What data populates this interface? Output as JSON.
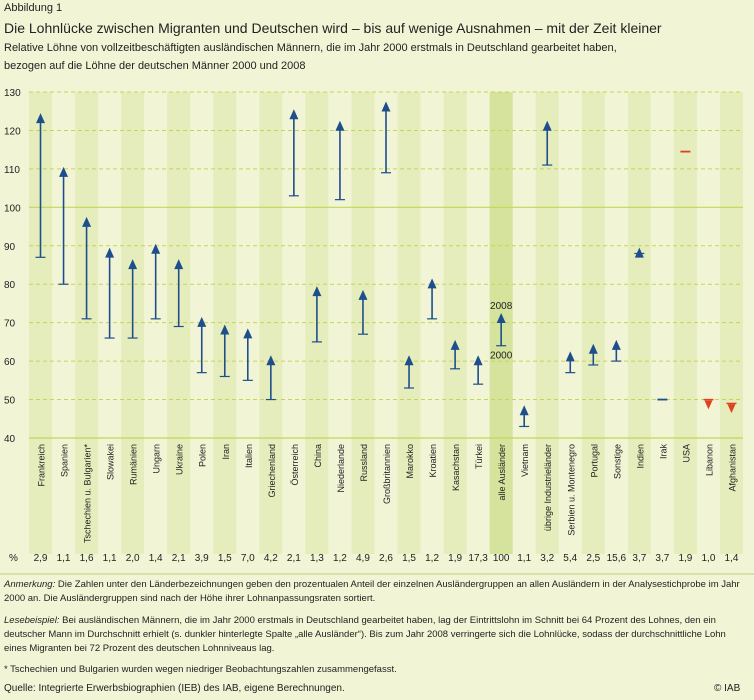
{
  "figure_label": "Abbildung 1",
  "title": "Die Lohnlücke zwischen Migranten und Deutschen wird – bis auf wenige Ausnahmen – mit der Zeit kleiner",
  "subtitle_line1": "Relative Löhne von vollzeitbeschäftigten ausländischen Männern, die im Jahr 2000 erstmals in Deutschland gearbeitet haben,",
  "subtitle_line2": "bezogen auf die Löhne der deutschen Männer 2000 und 2008",
  "notes": {
    "anmerkung_label": "Anmerkung:",
    "anmerkung_text": " Die Zahlen unter den Länderbezeichnungen geben den prozentualen Anteil der einzelnen Ausländergruppen an allen Ausländern in der Analysestichprobe im Jahr 2000 an. Die Ausländergruppen sind nach der Höhe ihrer Lohnanpassungsraten sortiert.",
    "lesebeispiel_label": "Lesebeispiel:",
    "lesebeispiel_text": " Bei ausländischen Männern, die im Jahr 2000 erstmals in Deutschland gearbeitet haben, lag der Eintrittslohn im Schnitt bei 64 Prozent des Lohnes, den ein deutscher Mann im Durchschnitt erhielt (s. dunkler hinterlegte Spalte „alle Ausländer“). Bis zum Jahr 2008 verringerte sich die Lohnlücke, sodass der durchschnittliche Lohn eines Migranten bei 72 Prozent des deutschen Lohnniveaus lag.",
    "footnote": "* Tschechien und Bulgarien wurden wegen niedriger Beobachtungszahlen zusammengefasst."
  },
  "source": "Quelle: Integrierte Erwerbsbiographien (IEB) des IAB, eigene Berechnungen.",
  "logo": "© IAB",
  "chart_data": {
    "type": "arrow",
    "ylim": [
      40,
      130
    ],
    "yticks": [
      "40",
      "50",
      "60",
      "70",
      "80",
      "90",
      "100",
      "110",
      "120",
      "130"
    ],
    "pct_label": "%",
    "annotation_2008": "2008",
    "annotation_2000": "2000",
    "colors": {
      "arrow": "#1f4e8c",
      "down_marker": "#e04020",
      "grid": "#c3d655",
      "highlight": "#d6e39c",
      "stripe": "#e6edbd"
    },
    "categories": [
      {
        "name": "Frankreich",
        "pct": "2,9",
        "y2000": 87,
        "y2008": 124
      },
      {
        "name": "Spanien",
        "pct": "1,1",
        "y2000": 80,
        "y2008": 110
      },
      {
        "name": "Tschechien u. Bulgarien*",
        "pct": "1,6",
        "y2000": 71,
        "y2008": 97
      },
      {
        "name": "Slowakei",
        "pct": "1,1",
        "y2000": 66,
        "y2008": 89
      },
      {
        "name": "Rumänien",
        "pct": "2,0",
        "y2000": 66,
        "y2008": 86
      },
      {
        "name": "Ungarn",
        "pct": "1,4",
        "y2000": 71,
        "y2008": 90
      },
      {
        "name": "Ukraine",
        "pct": "2,1",
        "y2000": 69,
        "y2008": 86
      },
      {
        "name": "Polen",
        "pct": "3,9",
        "y2000": 57,
        "y2008": 71
      },
      {
        "name": "Iran",
        "pct": "1,5",
        "y2000": 56,
        "y2008": 69
      },
      {
        "name": "Italien",
        "pct": "7,0",
        "y2000": 55,
        "y2008": 68
      },
      {
        "name": "Griechenland",
        "pct": "4,2",
        "y2000": 50,
        "y2008": 61
      },
      {
        "name": "Österreich",
        "pct": "2,1",
        "y2000": 103,
        "y2008": 125
      },
      {
        "name": "China",
        "pct": "1,3",
        "y2000": 65,
        "y2008": 79
      },
      {
        "name": "Niederlande",
        "pct": "1,2",
        "y2000": 102,
        "y2008": 122
      },
      {
        "name": "Russland",
        "pct": "4,9",
        "y2000": 67,
        "y2008": 78
      },
      {
        "name": "Großbritannien",
        "pct": "2,6",
        "y2000": 109,
        "y2008": 127
      },
      {
        "name": "Marokko",
        "pct": "1,5",
        "y2000": 53,
        "y2008": 61
      },
      {
        "name": "Kroatien",
        "pct": "1,2",
        "y2000": 71,
        "y2008": 81
      },
      {
        "name": "Kasachstan",
        "pct": "1,9",
        "y2000": 58,
        "y2008": 65
      },
      {
        "name": "Türkei",
        "pct": "17,3",
        "y2000": 54,
        "y2008": 61
      },
      {
        "name": "alle Ausländer",
        "pct": "100",
        "y2000": 64,
        "y2008": 72,
        "highlight": true
      },
      {
        "name": "Vietnam",
        "pct": "1,1",
        "y2000": 43,
        "y2008": 48
      },
      {
        "name": "übrige Industrieländer",
        "pct": "3,2",
        "y2000": 111,
        "y2008": 122
      },
      {
        "name": "Serbien u. Montenegro",
        "pct": "5,4",
        "y2000": 57,
        "y2008": 62
      },
      {
        "name": "Portugal",
        "pct": "2,5",
        "y2000": 59,
        "y2008": 64
      },
      {
        "name": "Sonstige",
        "pct": "15,6",
        "y2000": 60,
        "y2008": 65
      },
      {
        "name": "Indien",
        "pct": "3,7",
        "y2000": 88,
        "y2008": 89
      },
      {
        "name": "Irak",
        "pct": "3,7",
        "y2000": 50,
        "y2008": 50
      },
      {
        "name": "USA",
        "pct": "1,9",
        "y2000": 114.5,
        "y2008": 114.5
      },
      {
        "name": "Libanon",
        "pct": "1,0",
        "y2000": 50,
        "y2008": 48.5
      },
      {
        "name": "Afghanistan",
        "pct": "1,4",
        "y2000": 49,
        "y2008": 47.5
      }
    ]
  }
}
